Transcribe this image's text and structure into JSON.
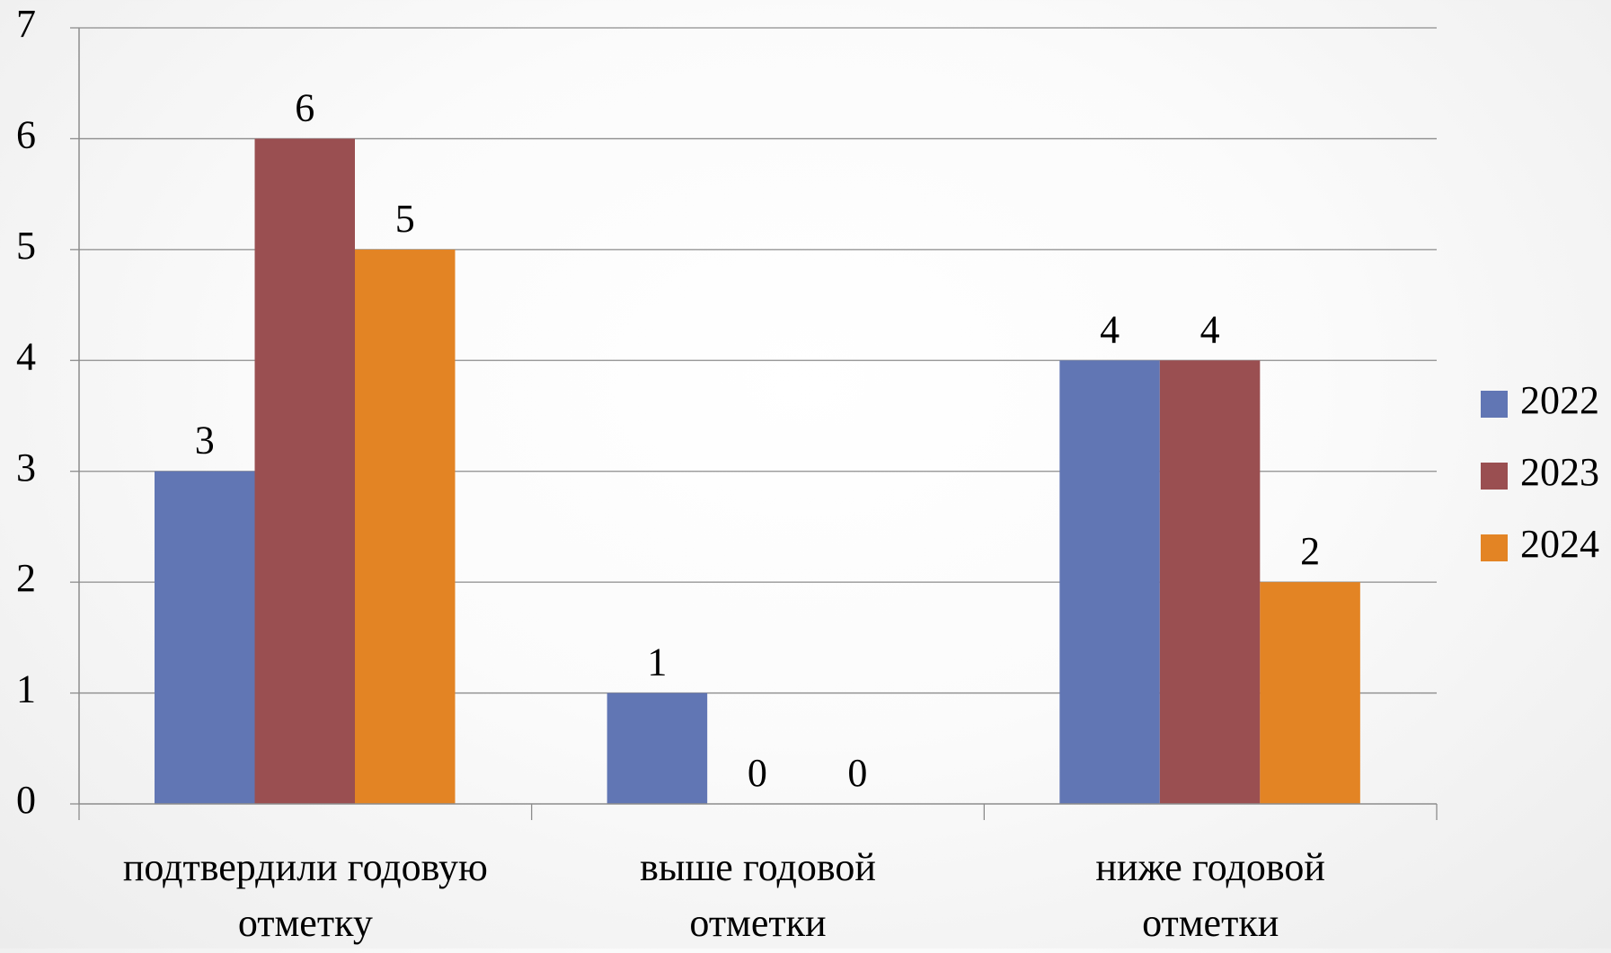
{
  "chart_data": {
    "type": "bar",
    "categories": [
      [
        "подтвердили годовую",
        "отметку"
      ],
      [
        "выше годовой",
        "отметки"
      ],
      [
        "ниже годовой",
        "отметки"
      ]
    ],
    "series": [
      {
        "name": "2022",
        "values": [
          3,
          1,
          4
        ],
        "color": "#6176b4"
      },
      {
        "name": "2023",
        "values": [
          6,
          0,
          4
        ],
        "color": "#9a4f51"
      },
      {
        "name": "2024",
        "values": [
          5,
          0,
          2
        ],
        "color": "#e38424"
      }
    ],
    "ylim": [
      0,
      7
    ],
    "yticks": [
      0,
      1,
      2,
      3,
      4,
      5,
      6,
      7
    ],
    "grid": true,
    "legend": "right",
    "data_labels": true,
    "title": "",
    "xlabel": "",
    "ylabel": ""
  }
}
